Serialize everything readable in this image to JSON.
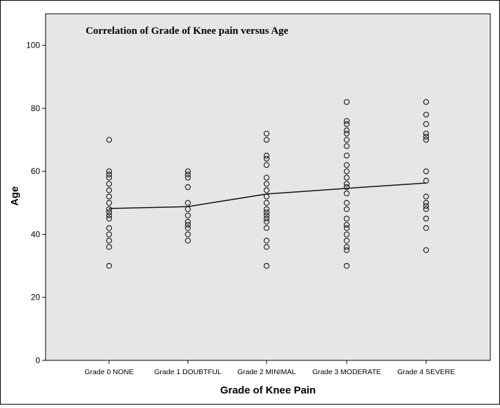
{
  "chart_data": {
    "type": "scatter",
    "title": "Correlation of Grade of Knee pain versus Age",
    "xlabel": "Grade of Knee Pain",
    "ylabel": "Age",
    "ylim": [
      0,
      110
    ],
    "yticks": [
      0,
      20,
      40,
      60,
      80,
      100
    ],
    "grid": false,
    "legend": "none",
    "categories": [
      "Grade 0 NONE",
      "Grade 1 DOUBTFUL",
      "Grade 2 MINIMAL",
      "Grade 3 MODERATE",
      "Grade 4 SEVERE"
    ],
    "points": [
      [
        70,
        60,
        59,
        58,
        56,
        54,
        52,
        50,
        48,
        47,
        46,
        45,
        42,
        40,
        38,
        36,
        30
      ],
      [
        60,
        59,
        58,
        55,
        50,
        48,
        46,
        44,
        43,
        42,
        40,
        38
      ],
      [
        72,
        70,
        65,
        64,
        62,
        58,
        56,
        54,
        52,
        50,
        48,
        47,
        46,
        45,
        44,
        42,
        38,
        36,
        30
      ],
      [
        82,
        76,
        75,
        73,
        72,
        70,
        68,
        65,
        62,
        60,
        58,
        56,
        55,
        53,
        50,
        48,
        45,
        43,
        42,
        40,
        38,
        36,
        35,
        30
      ],
      [
        82,
        78,
        75,
        72,
        71,
        70,
        60,
        57,
        52,
        50,
        49,
        48,
        45,
        42,
        35
      ]
    ],
    "mean_line": [
      48.2,
      48.8,
      52.8,
      54.6,
      56.3
    ],
    "colors": {
      "plot_background": "#e6e6e6",
      "marker_stroke": "#222222",
      "line": "#111111",
      "frame": "#000000"
    }
  }
}
